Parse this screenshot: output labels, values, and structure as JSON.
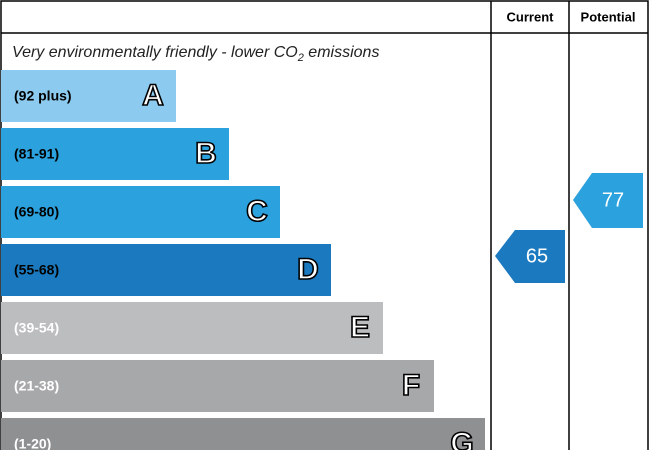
{
  "header": {
    "current": "Current",
    "potential": "Potential"
  },
  "top_label": {
    "text": "Very environmentally friendly - lower CO",
    "subscript": "2",
    "suffix": " emissions"
  },
  "bands": [
    {
      "range": "(92 plus)",
      "letter": "A",
      "color": "#8ccbef"
    },
    {
      "range": "(81-91)",
      "letter": "B",
      "color": "#2ba2dd"
    },
    {
      "range": "(69-80)",
      "letter": "C",
      "color": "#2ba2dd"
    },
    {
      "range": "(55-68)",
      "letter": "D",
      "color": "#1b7abf"
    },
    {
      "range": "(39-54)",
      "letter": "E",
      "color": "#bcbdbf"
    },
    {
      "range": "(21-38)",
      "letter": "F",
      "color": "#a7a8aa"
    },
    {
      "range": "(1-20)",
      "letter": "G",
      "color": "#8f9092"
    }
  ],
  "current": {
    "value": "65",
    "color": "#1b7abf"
  },
  "potential": {
    "value": "77",
    "color": "#2ba2dd"
  }
}
